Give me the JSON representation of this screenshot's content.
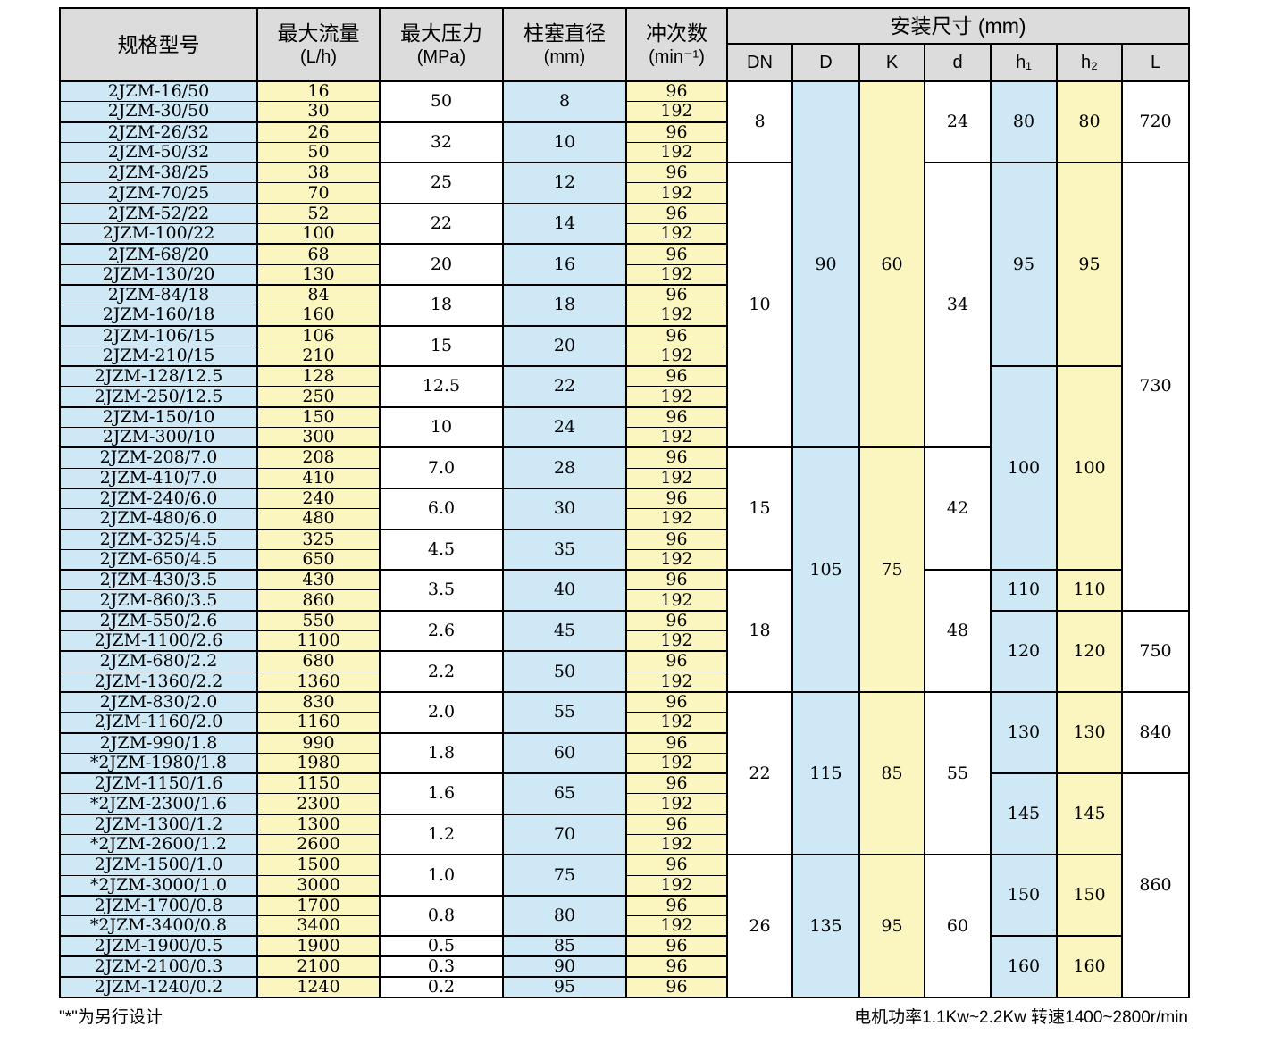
{
  "table": {
    "headers": {
      "model": {
        "title": "规格型号"
      },
      "flow": {
        "title": "最大流量",
        "unit": "(L/h)"
      },
      "pressure": {
        "title": "最大压力",
        "unit": "(MPa)"
      },
      "plunger": {
        "title": "柱塞直径",
        "unit": "(mm)"
      },
      "stroke": {
        "title": "冲次数",
        "unit": "(min⁻¹)"
      },
      "install": {
        "title": "安装尺寸 (mm)",
        "sub": [
          "DN",
          "D",
          "K",
          "d",
          "h₁",
          "h₂",
          "L"
        ]
      }
    },
    "spec_groups": [
      {
        "pressure": "50",
        "plunger": "8",
        "models": [
          [
            "2JZM-16/50",
            "16",
            "96"
          ],
          [
            "2JZM-30/50",
            "30",
            "192"
          ]
        ]
      },
      {
        "pressure": "32",
        "plunger": "10",
        "models": [
          [
            "2JZM-26/32",
            "26",
            "96"
          ],
          [
            "2JZM-50/32",
            "50",
            "192"
          ]
        ]
      },
      {
        "pressure": "25",
        "plunger": "12",
        "models": [
          [
            "2JZM-38/25",
            "38",
            "96"
          ],
          [
            "2JZM-70/25",
            "70",
            "192"
          ]
        ]
      },
      {
        "pressure": "22",
        "plunger": "14",
        "models": [
          [
            "2JZM-52/22",
            "52",
            "96"
          ],
          [
            "2JZM-100/22",
            "100",
            "192"
          ]
        ]
      },
      {
        "pressure": "20",
        "plunger": "16",
        "models": [
          [
            "2JZM-68/20",
            "68",
            "96"
          ],
          [
            "2JZM-130/20",
            "130",
            "192"
          ]
        ]
      },
      {
        "pressure": "18",
        "plunger": "18",
        "models": [
          [
            "2JZM-84/18",
            "84",
            "96"
          ],
          [
            "2JZM-160/18",
            "160",
            "192"
          ]
        ]
      },
      {
        "pressure": "15",
        "plunger": "20",
        "models": [
          [
            "2JZM-106/15",
            "106",
            "96"
          ],
          [
            "2JZM-210/15",
            "210",
            "192"
          ]
        ]
      },
      {
        "pressure": "12.5",
        "plunger": "22",
        "models": [
          [
            "2JZM-128/12.5",
            "128",
            "96"
          ],
          [
            "2JZM-250/12.5",
            "250",
            "192"
          ]
        ]
      },
      {
        "pressure": "10",
        "plunger": "24",
        "models": [
          [
            "2JZM-150/10",
            "150",
            "96"
          ],
          [
            "2JZM-300/10",
            "300",
            "192"
          ]
        ]
      },
      {
        "pressure": "7.0",
        "plunger": "28",
        "models": [
          [
            "2JZM-208/7.0",
            "208",
            "96"
          ],
          [
            "2JZM-410/7.0",
            "410",
            "192"
          ]
        ]
      },
      {
        "pressure": "6.0",
        "plunger": "30",
        "models": [
          [
            "2JZM-240/6.0",
            "240",
            "96"
          ],
          [
            "2JZM-480/6.0",
            "480",
            "192"
          ]
        ]
      },
      {
        "pressure": "4.5",
        "plunger": "35",
        "models": [
          [
            "2JZM-325/4.5",
            "325",
            "96"
          ],
          [
            "2JZM-650/4.5",
            "650",
            "192"
          ]
        ]
      },
      {
        "pressure": "3.5",
        "plunger": "40",
        "models": [
          [
            "2JZM-430/3.5",
            "430",
            "96"
          ],
          [
            "2JZM-860/3.5",
            "860",
            "192"
          ]
        ]
      },
      {
        "pressure": "2.6",
        "plunger": "45",
        "models": [
          [
            "2JZM-550/2.6",
            "550",
            "96"
          ],
          [
            "2JZM-1100/2.6",
            "1100",
            "192"
          ]
        ]
      },
      {
        "pressure": "2.2",
        "plunger": "50",
        "models": [
          [
            "2JZM-680/2.2",
            "680",
            "96"
          ],
          [
            "2JZM-1360/2.2",
            "1360",
            "192"
          ]
        ]
      },
      {
        "pressure": "2.0",
        "plunger": "55",
        "models": [
          [
            "2JZM-830/2.0",
            "830",
            "96"
          ],
          [
            "2JZM-1160/2.0",
            "1160",
            "192"
          ]
        ]
      },
      {
        "pressure": "1.8",
        "plunger": "60",
        "models": [
          [
            "2JZM-990/1.8",
            "990",
            "96"
          ],
          [
            "*2JZM-1980/1.8",
            "1980",
            "192"
          ]
        ]
      },
      {
        "pressure": "1.6",
        "plunger": "65",
        "models": [
          [
            "2JZM-1150/1.6",
            "1150",
            "96"
          ],
          [
            "*2JZM-2300/1.6",
            "2300",
            "192"
          ]
        ]
      },
      {
        "pressure": "1.2",
        "plunger": "70",
        "models": [
          [
            "2JZM-1300/1.2",
            "1300",
            "96"
          ],
          [
            "*2JZM-2600/1.2",
            "2600",
            "192"
          ]
        ]
      },
      {
        "pressure": "1.0",
        "plunger": "75",
        "models": [
          [
            "2JZM-1500/1.0",
            "1500",
            "96"
          ],
          [
            "*2JZM-3000/1.0",
            "3000",
            "192"
          ]
        ]
      },
      {
        "pressure": "0.8",
        "plunger": "80",
        "models": [
          [
            "2JZM-1700/0.8",
            "1700",
            "96"
          ],
          [
            "*2JZM-3400/0.8",
            "3400",
            "192"
          ]
        ]
      },
      {
        "pressure": "0.5",
        "plunger": "85",
        "models": [
          [
            "2JZM-1900/0.5",
            "1900",
            "96"
          ]
        ]
      },
      {
        "pressure": "0.3",
        "plunger": "90",
        "models": [
          [
            "2JZM-2100/0.3",
            "2100",
            "96"
          ]
        ]
      },
      {
        "pressure": "0.2",
        "plunger": "95",
        "models": [
          [
            "2JZM-1240/0.2",
            "1240",
            "96"
          ]
        ]
      }
    ],
    "install_columns": {
      "DN": [
        {
          "v": "8",
          "span": 4
        },
        {
          "v": "10",
          "span": 14
        },
        {
          "v": "15",
          "span": 6
        },
        {
          "v": "18",
          "span": 6
        },
        {
          "v": "22",
          "span": 8
        },
        {
          "v": "26",
          "span": 7
        }
      ],
      "D": [
        {
          "v": "90",
          "span": 18
        },
        {
          "v": "105",
          "span": 12
        },
        {
          "v": "115",
          "span": 8
        },
        {
          "v": "135",
          "span": 7
        }
      ],
      "K": [
        {
          "v": "60",
          "span": 18
        },
        {
          "v": "75",
          "span": 12
        },
        {
          "v": "85",
          "span": 8
        },
        {
          "v": "95",
          "span": 7
        }
      ],
      "d": [
        {
          "v": "24",
          "span": 4
        },
        {
          "v": "34",
          "span": 14
        },
        {
          "v": "42",
          "span": 6
        },
        {
          "v": "48",
          "span": 6
        },
        {
          "v": "55",
          "span": 8
        },
        {
          "v": "60",
          "span": 7
        }
      ],
      "h1": [
        {
          "v": "80",
          "span": 4
        },
        {
          "v": "95",
          "span": 10
        },
        {
          "v": "100",
          "span": 10
        },
        {
          "v": "110",
          "span": 2
        },
        {
          "v": "120",
          "span": 4
        },
        {
          "v": "130",
          "span": 4
        },
        {
          "v": "145",
          "span": 4
        },
        {
          "v": "150",
          "span": 4
        },
        {
          "v": "160",
          "span": 3
        }
      ],
      "h2": [
        {
          "v": "80",
          "span": 4
        },
        {
          "v": "95",
          "span": 10
        },
        {
          "v": "100",
          "span": 10
        },
        {
          "v": "110",
          "span": 2
        },
        {
          "v": "120",
          "span": 4
        },
        {
          "v": "130",
          "span": 4
        },
        {
          "v": "145",
          "span": 4
        },
        {
          "v": "150",
          "span": 4
        },
        {
          "v": "160",
          "span": 3
        }
      ],
      "L": [
        {
          "v": "720",
          "span": 4
        },
        {
          "v": "730",
          "span": 22
        },
        {
          "v": "750",
          "span": 4
        },
        {
          "v": "840",
          "span": 4
        },
        {
          "v": "860",
          "span": 11
        }
      ]
    }
  },
  "footnotes": {
    "left": "\"*\"为另行设计",
    "right": "电机功率1.1Kw~2.2Kw 转速1400~2800r/min"
  }
}
